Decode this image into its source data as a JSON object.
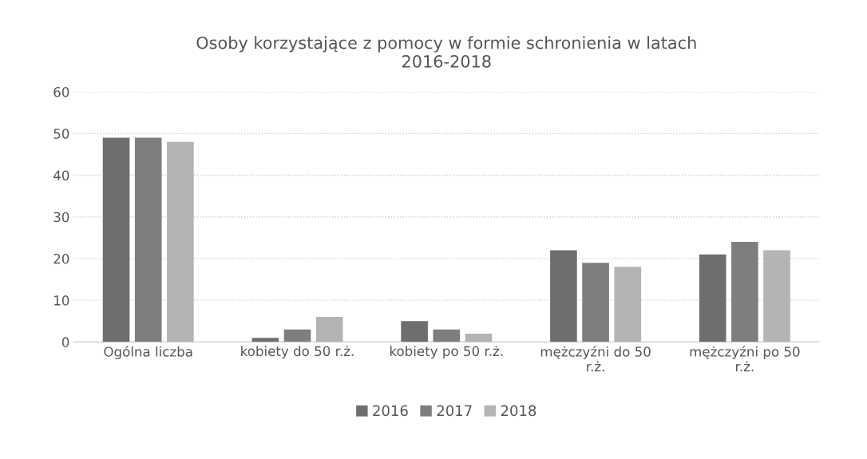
{
  "chart_data": {
    "type": "bar",
    "title": "Osoby korzystające z pomocy w formie schronienia w latach\n2016-2018",
    "categories": [
      "Ogólna liczba",
      "kobiety do 50 r.ż.",
      "kobiety po 50 r.ż.",
      "mężczyźni do 50\nr.ż.",
      "mężczyźni po 50\nr.ż."
    ],
    "series": [
      {
        "name": "2016",
        "color": "#6e6e6e",
        "values": [
          49,
          1,
          5,
          22,
          21
        ]
      },
      {
        "name": "2017",
        "color": "#7e7e7e",
        "values": [
          49,
          3,
          3,
          19,
          24
        ]
      },
      {
        "name": "2018",
        "color": "#b4b4b4",
        "values": [
          48,
          6,
          2,
          18,
          22
        ]
      }
    ],
    "ylim": [
      0,
      60
    ],
    "yticks": [
      0,
      10,
      20,
      30,
      40,
      50,
      60
    ],
    "grid": "y",
    "legend": "bottom"
  }
}
